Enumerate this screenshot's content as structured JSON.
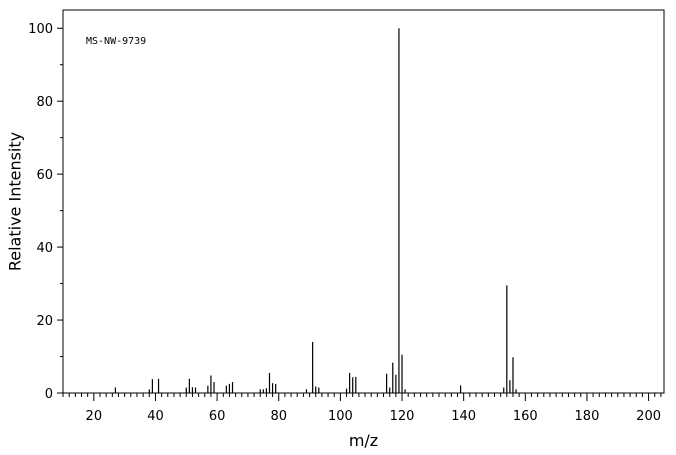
{
  "chart_data": {
    "type": "bar",
    "title": "",
    "xlabel": "m/z",
    "ylabel": "Relative Intensity",
    "xlim": [
      10,
      205
    ],
    "ylim": [
      0,
      105
    ],
    "x_ticks_major": [
      20,
      40,
      60,
      80,
      100,
      120,
      140,
      160,
      180,
      200
    ],
    "y_ticks_major": [
      0,
      20,
      40,
      60,
      80,
      100
    ],
    "grid": false,
    "legend": "none",
    "annotations": [
      {
        "text": "MS-NW-9739"
      }
    ],
    "series": [
      {
        "x": [
          27,
          38,
          39,
          41,
          50,
          51,
          52,
          53,
          57,
          58,
          59,
          63,
          64,
          65,
          74,
          75,
          76,
          77,
          78,
          79,
          89,
          91,
          92,
          93,
          102,
          103,
          104,
          105,
          115,
          116,
          117,
          118,
          119,
          120,
          121,
          139,
          153,
          154,
          155,
          156,
          157
        ],
        "values": [
          1.5,
          1.0,
          3.8,
          3.9,
          1.5,
          3.9,
          1.6,
          1.5,
          2.0,
          4.8,
          3.0,
          2.0,
          2.5,
          3.0,
          1.0,
          1.0,
          1.3,
          5.5,
          2.7,
          2.5,
          1.0,
          14.0,
          1.8,
          1.5,
          1.2,
          5.5,
          4.3,
          4.4,
          5.3,
          1.5,
          8.3,
          5.0,
          100,
          10.5,
          1.0,
          2.1,
          1.5,
          29.5,
          3.5,
          9.8,
          1.0
        ]
      }
    ]
  }
}
